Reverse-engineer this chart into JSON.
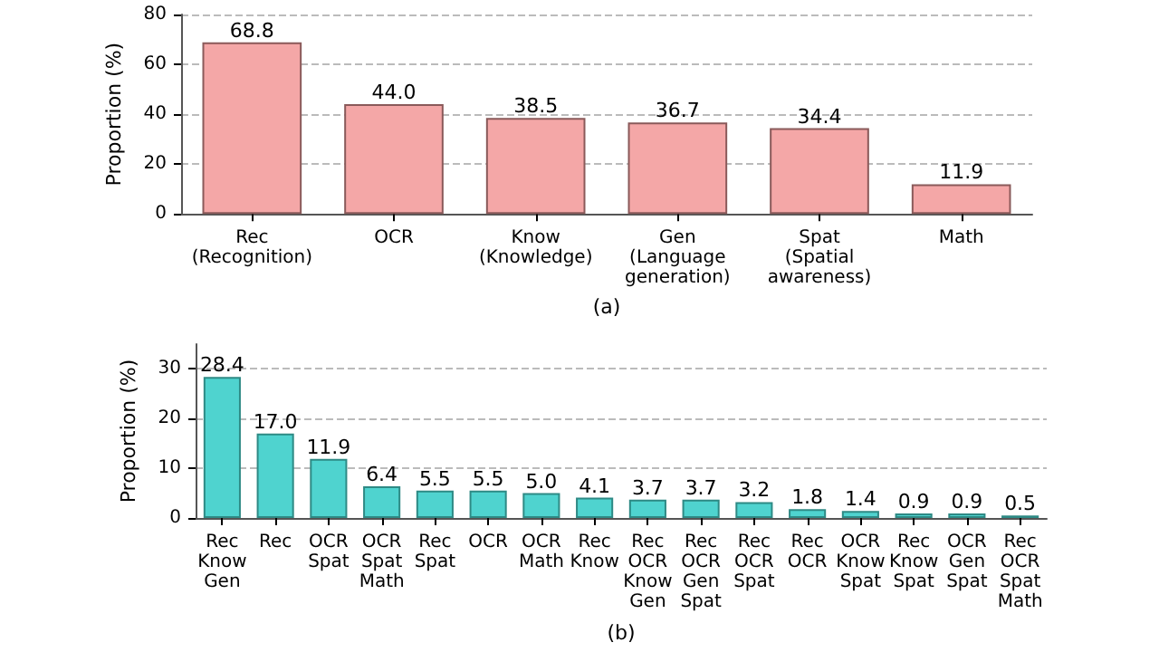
{
  "chart_data": [
    {
      "type": "bar",
      "xlabel": "(a)",
      "ylabel": "Proportion (%)",
      "categories": [
        "Rec\n(Recognition)",
        "OCR",
        "Know\n(Knowledge)",
        "Gen\n(Language\ngeneration)",
        "Spat\n(Spatial\nawareness)",
        "Math"
      ],
      "values": [
        68.8,
        44.0,
        38.5,
        36.7,
        34.4,
        11.9
      ],
      "color": "#f4a7a7",
      "value_labels": [
        "68.8",
        "44.0",
        "38.5",
        "36.7",
        "34.4",
        "11.9"
      ],
      "ylim": [
        0,
        80
      ],
      "yticks": [
        0,
        20,
        40,
        60,
        80
      ],
      "grid": "y"
    },
    {
      "type": "bar",
      "xlabel": "(b)",
      "ylabel": "Proportion (%)",
      "categories": [
        "Rec\nKnow\nGen",
        "Rec",
        "OCR\nSpat",
        "OCR\nSpat\nMath",
        "Rec\nSpat",
        "OCR",
        "OCR\nMath",
        "Rec\nKnow",
        "Rec\nOCR\nKnow\nGen",
        "Rec\nOCR\nGen\nSpat",
        "Rec\nOCR\nSpat",
        "Rec\nOCR",
        "OCR\nKnow\nSpat",
        "Rec\nKnow\nSpat",
        "OCR\nGen\nSpat",
        "Rec\nOCR\nSpat\nMath"
      ],
      "values": [
        28.4,
        17.0,
        11.9,
        6.4,
        5.5,
        5.5,
        5.0,
        4.1,
        3.7,
        3.7,
        3.2,
        1.8,
        1.4,
        0.9,
        0.9,
        0.5
      ],
      "color": "#4fd3cf",
      "value_labels": [
        "28.4",
        "17.0",
        "11.9",
        "6.4",
        "5.5",
        "5.5",
        "5.0",
        "4.1",
        "3.7",
        "3.7",
        "3.2",
        "1.8",
        "1.4",
        "0.9",
        "0.9",
        "0.5"
      ],
      "ylim": [
        0,
        35
      ],
      "yticks": [
        0,
        10,
        20,
        30
      ],
      "grid": "y"
    }
  ]
}
